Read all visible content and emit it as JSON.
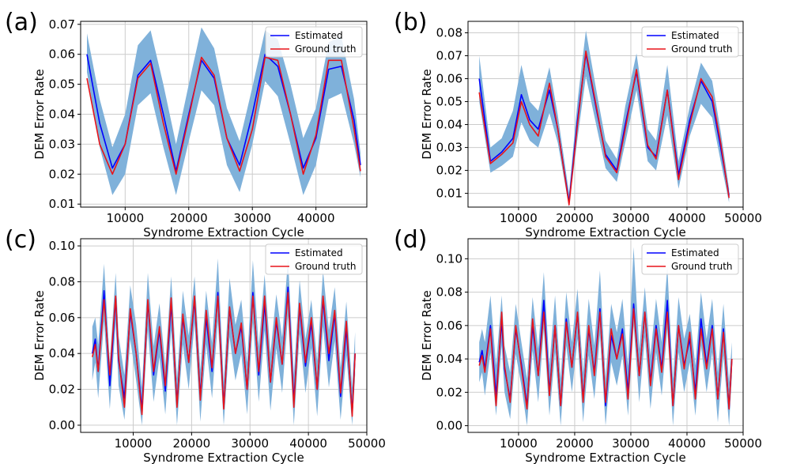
{
  "colors": {
    "estimated": "#0000ff",
    "ground_truth": "#e8141a",
    "band": "#7fb1da",
    "grid": "#cccccc"
  },
  "chart_data": [
    {
      "panel": "(a)",
      "type": "line",
      "xlabel": "Syndrome Extraction Cycle",
      "ylabel": "DEM Error Rate",
      "xlim": [
        3000,
        48000
      ],
      "ylim": [
        0.009,
        0.071
      ],
      "xticks": [
        10000,
        20000,
        30000,
        40000
      ],
      "xtick_labels": [
        "10000",
        "20000",
        "30000",
        "40000"
      ],
      "yticks": [
        0.01,
        0.02,
        0.03,
        0.04,
        0.05,
        0.06,
        0.07
      ],
      "ytick_labels": [
        "0.01",
        "0.02",
        "0.03",
        "0.04",
        "0.05",
        "0.06",
        "0.07"
      ],
      "legend": [
        "Estimated",
        "Ground truth"
      ],
      "legend_position": "top-right",
      "x": [
        4000,
        6000,
        8000,
        10000,
        12000,
        14000,
        16000,
        18000,
        20000,
        22000,
        24000,
        26000,
        28000,
        30000,
        32000,
        34000,
        36000,
        38000,
        40000,
        42000,
        44000,
        46000,
        47000
      ],
      "series": [
        {
          "name": "Estimated",
          "values": [
            0.06,
            0.037,
            0.022,
            0.03,
            0.053,
            0.058,
            0.04,
            0.021,
            0.04,
            0.058,
            0.052,
            0.032,
            0.023,
            0.04,
            0.06,
            0.056,
            0.04,
            0.022,
            0.032,
            0.055,
            0.056,
            0.038,
            0.023
          ]
        },
        {
          "name": "Ground truth",
          "values": [
            0.052,
            0.03,
            0.02,
            0.03,
            0.052,
            0.057,
            0.037,
            0.02,
            0.039,
            0.059,
            0.053,
            0.032,
            0.021,
            0.035,
            0.059,
            0.058,
            0.04,
            0.02,
            0.033,
            0.058,
            0.058,
            0.035,
            0.021
          ]
        }
      ],
      "band": {
        "upper": [
          0.067,
          0.045,
          0.029,
          0.04,
          0.063,
          0.068,
          0.05,
          0.03,
          0.05,
          0.069,
          0.062,
          0.042,
          0.031,
          0.049,
          0.068,
          0.065,
          0.05,
          0.032,
          0.042,
          0.064,
          0.066,
          0.045,
          0.027
        ],
        "lower": [
          0.054,
          0.029,
          0.013,
          0.02,
          0.043,
          0.047,
          0.029,
          0.013,
          0.031,
          0.048,
          0.043,
          0.023,
          0.014,
          0.03,
          0.051,
          0.046,
          0.03,
          0.013,
          0.023,
          0.045,
          0.047,
          0.03,
          0.019
        ]
      }
    },
    {
      "panel": "(b)",
      "type": "line",
      "xlabel": "Syndrome Extraction Cycle",
      "ylabel": "DEM Error Rate",
      "xlim": [
        1000,
        50000
      ],
      "ylim": [
        0.004,
        0.085
      ],
      "xticks": [
        10000,
        20000,
        30000,
        40000,
        50000
      ],
      "xtick_labels": [
        "10000",
        "20000",
        "30000",
        "40000",
        "50000"
      ],
      "yticks": [
        0.01,
        0.02,
        0.03,
        0.04,
        0.05,
        0.06,
        0.07,
        0.08
      ],
      "ytick_labels": [
        "0.01",
        "0.02",
        "0.03",
        "0.04",
        "0.05",
        "0.06",
        "0.07",
        "0.08"
      ],
      "legend": [
        "Estimated",
        "Ground truth"
      ],
      "legend_position": "top-right",
      "x": [
        3000,
        5000,
        7000,
        9000,
        10500,
        12000,
        13500,
        15500,
        17000,
        19000,
        20500,
        22000,
        24000,
        25500,
        27500,
        29000,
        31000,
        33000,
        34500,
        36500,
        38500,
        40500,
        42500,
        44500,
        46000,
        47500
      ],
      "series": [
        {
          "name": "Estimated",
          "values": [
            0.06,
            0.024,
            0.028,
            0.034,
            0.053,
            0.042,
            0.038,
            0.055,
            0.038,
            0.006,
            0.042,
            0.071,
            0.045,
            0.027,
            0.02,
            0.04,
            0.063,
            0.03,
            0.026,
            0.055,
            0.018,
            0.042,
            0.059,
            0.05,
            0.03,
            0.009
          ]
        },
        {
          "name": "Ground truth",
          "values": [
            0.054,
            0.023,
            0.027,
            0.032,
            0.05,
            0.04,
            0.035,
            0.058,
            0.038,
            0.005,
            0.04,
            0.072,
            0.046,
            0.026,
            0.019,
            0.038,
            0.064,
            0.031,
            0.025,
            0.055,
            0.016,
            0.04,
            0.06,
            0.052,
            0.032,
            0.008
          ]
        }
      ],
      "band": {
        "upper": [
          0.07,
          0.03,
          0.034,
          0.046,
          0.066,
          0.05,
          0.046,
          0.065,
          0.044,
          0.01,
          0.05,
          0.081,
          0.053,
          0.033,
          0.025,
          0.048,
          0.071,
          0.038,
          0.033,
          0.066,
          0.024,
          0.048,
          0.067,
          0.059,
          0.037,
          0.012
        ],
        "lower": [
          0.05,
          0.019,
          0.022,
          0.026,
          0.041,
          0.033,
          0.03,
          0.045,
          0.032,
          0.004,
          0.034,
          0.061,
          0.038,
          0.021,
          0.015,
          0.032,
          0.055,
          0.024,
          0.02,
          0.044,
          0.012,
          0.035,
          0.049,
          0.043,
          0.024,
          0.006
        ]
      }
    },
    {
      "panel": "(c)",
      "type": "line",
      "xlabel": "Syndrome Extraction Cycle",
      "ylabel": "DEM Error Rate",
      "xlim": [
        1000,
        50000
      ],
      "ylim": [
        -0.004,
        0.104
      ],
      "xticks": [
        10000,
        20000,
        30000,
        40000,
        50000
      ],
      "xtick_labels": [
        "10000",
        "20000",
        "30000",
        "40000",
        "50000"
      ],
      "yticks": [
        0.0,
        0.02,
        0.04,
        0.06,
        0.08,
        0.1
      ],
      "ytick_labels": [
        "0.00",
        "0.02",
        "0.04",
        "0.06",
        "0.08",
        "0.10"
      ],
      "legend": [
        "Estimated",
        "Ground truth"
      ],
      "legend_position": "top-right",
      "x": [
        3000,
        3500,
        4000,
        5000,
        6000,
        7000,
        7500,
        8500,
        9500,
        10500,
        11500,
        12500,
        13500,
        14500,
        15500,
        16500,
        17500,
        18500,
        19500,
        20500,
        21500,
        22500,
        23500,
        24500,
        25500,
        26500,
        27500,
        28500,
        29500,
        30500,
        31500,
        32500,
        33500,
        34500,
        35500,
        36500,
        37500,
        38500,
        39500,
        40500,
        41500,
        42500,
        43500,
        44500,
        45500,
        46500,
        47500,
        48000
      ],
      "series": [
        {
          "name": "Estimated",
          "values": [
            0.04,
            0.048,
            0.03,
            0.075,
            0.022,
            0.071,
            0.036,
            0.015,
            0.063,
            0.04,
            0.009,
            0.069,
            0.028,
            0.053,
            0.019,
            0.068,
            0.012,
            0.06,
            0.035,
            0.07,
            0.016,
            0.06,
            0.03,
            0.074,
            0.01,
            0.065,
            0.04,
            0.055,
            0.02,
            0.074,
            0.028,
            0.068,
            0.024,
            0.058,
            0.034,
            0.077,
            0.013,
            0.066,
            0.033,
            0.057,
            0.02,
            0.07,
            0.036,
            0.062,
            0.016,
            0.054,
            0.007,
            0.04
          ]
        },
        {
          "name": "Ground truth",
          "values": [
            0.038,
            0.045,
            0.03,
            0.07,
            0.028,
            0.072,
            0.038,
            0.01,
            0.065,
            0.04,
            0.006,
            0.07,
            0.03,
            0.055,
            0.022,
            0.071,
            0.01,
            0.062,
            0.035,
            0.072,
            0.014,
            0.064,
            0.032,
            0.072,
            0.009,
            0.066,
            0.04,
            0.057,
            0.02,
            0.072,
            0.03,
            0.072,
            0.024,
            0.06,
            0.034,
            0.074,
            0.01,
            0.068,
            0.035,
            0.06,
            0.02,
            0.072,
            0.04,
            0.064,
            0.018,
            0.058,
            0.005,
            0.04
          ]
        }
      ],
      "band": {
        "upper": [
          0.055,
          0.06,
          0.045,
          0.09,
          0.035,
          0.085,
          0.05,
          0.028,
          0.078,
          0.056,
          0.021,
          0.085,
          0.044,
          0.068,
          0.033,
          0.083,
          0.026,
          0.075,
          0.05,
          0.083,
          0.031,
          0.075,
          0.046,
          0.093,
          0.024,
          0.082,
          0.056,
          0.07,
          0.035,
          0.092,
          0.044,
          0.084,
          0.04,
          0.073,
          0.049,
          0.093,
          0.028,
          0.081,
          0.048,
          0.07,
          0.036,
          0.086,
          0.053,
          0.077,
          0.032,
          0.069,
          0.021,
          0.052
        ],
        "lower": [
          0.025,
          0.035,
          0.015,
          0.058,
          0.009,
          0.057,
          0.022,
          0.003,
          0.048,
          0.025,
          0.0,
          0.053,
          0.013,
          0.038,
          0.006,
          0.053,
          0.0,
          0.045,
          0.02,
          0.057,
          0.002,
          0.045,
          0.015,
          0.058,
          0.0,
          0.049,
          0.025,
          0.04,
          0.006,
          0.057,
          0.013,
          0.053,
          0.008,
          0.043,
          0.018,
          0.061,
          0.0,
          0.051,
          0.018,
          0.043,
          0.005,
          0.055,
          0.021,
          0.047,
          0.003,
          0.039,
          0.0,
          0.028
        ]
      }
    },
    {
      "panel": "(d)",
      "type": "line",
      "xlabel": "Syndrome Extraction Cycle",
      "ylabel": "DEM Error Rate",
      "xlim": [
        1000,
        50000
      ],
      "ylim": [
        -0.004,
        0.112
      ],
      "xticks": [
        10000,
        20000,
        30000,
        40000,
        50000
      ],
      "xtick_labels": [
        "10000",
        "20000",
        "30000",
        "40000",
        "50000"
      ],
      "yticks": [
        0.0,
        0.02,
        0.04,
        0.06,
        0.08,
        0.1
      ],
      "ytick_labels": [
        "0.00",
        "0.02",
        "0.04",
        "0.06",
        "0.08",
        "0.10"
      ],
      "legend": [
        "Estimated",
        "Ground truth"
      ],
      "legend_position": "top-right",
      "x": [
        3000,
        3500,
        4000,
        5000,
        6000,
        7000,
        7500,
        8500,
        9500,
        10500,
        11500,
        12500,
        13500,
        14500,
        15500,
        16500,
        17500,
        18500,
        19500,
        20500,
        21500,
        22500,
        23500,
        24500,
        25500,
        26500,
        27500,
        28500,
        29500,
        30500,
        31500,
        32500,
        33500,
        34500,
        35500,
        36500,
        37500,
        38500,
        39500,
        40500,
        41500,
        42500,
        43500,
        44500,
        45500,
        46500,
        47500,
        48000
      ],
      "series": [
        {
          "name": "Estimated",
          "values": [
            0.038,
            0.045,
            0.034,
            0.06,
            0.018,
            0.063,
            0.034,
            0.016,
            0.058,
            0.037,
            0.012,
            0.06,
            0.03,
            0.075,
            0.02,
            0.06,
            0.012,
            0.064,
            0.035,
            0.067,
            0.016,
            0.058,
            0.032,
            0.07,
            0.012,
            0.054,
            0.04,
            0.058,
            0.02,
            0.073,
            0.03,
            0.068,
            0.026,
            0.06,
            0.034,
            0.075,
            0.012,
            0.06,
            0.036,
            0.052,
            0.02,
            0.064,
            0.036,
            0.06,
            0.016,
            0.058,
            0.01,
            0.04
          ]
        },
        {
          "name": "Ground truth",
          "values": [
            0.036,
            0.042,
            0.032,
            0.058,
            0.012,
            0.068,
            0.036,
            0.014,
            0.06,
            0.035,
            0.01,
            0.064,
            0.03,
            0.068,
            0.018,
            0.06,
            0.012,
            0.062,
            0.035,
            0.068,
            0.014,
            0.06,
            0.03,
            0.068,
            0.014,
            0.058,
            0.04,
            0.055,
            0.016,
            0.07,
            0.03,
            0.068,
            0.024,
            0.058,
            0.032,
            0.068,
            0.012,
            0.06,
            0.034,
            0.056,
            0.016,
            0.058,
            0.034,
            0.058,
            0.016,
            0.056,
            0.01,
            0.04
          ]
        }
      ],
      "band": {
        "upper": [
          0.05,
          0.058,
          0.05,
          0.078,
          0.036,
          0.078,
          0.048,
          0.032,
          0.073,
          0.05,
          0.028,
          0.077,
          0.046,
          0.092,
          0.036,
          0.078,
          0.028,
          0.08,
          0.05,
          0.082,
          0.032,
          0.076,
          0.048,
          0.093,
          0.028,
          0.073,
          0.056,
          0.076,
          0.036,
          0.107,
          0.046,
          0.083,
          0.042,
          0.076,
          0.05,
          0.095,
          0.028,
          0.077,
          0.052,
          0.067,
          0.036,
          0.08,
          0.052,
          0.076,
          0.032,
          0.073,
          0.026,
          0.05
        ],
        "lower": [
          0.026,
          0.032,
          0.018,
          0.044,
          0.006,
          0.048,
          0.02,
          0.004,
          0.043,
          0.024,
          0.0,
          0.045,
          0.014,
          0.058,
          0.006,
          0.044,
          0.0,
          0.048,
          0.02,
          0.052,
          0.002,
          0.042,
          0.016,
          0.054,
          0.0,
          0.038,
          0.024,
          0.042,
          0.006,
          0.06,
          0.014,
          0.053,
          0.01,
          0.044,
          0.018,
          0.058,
          0.0,
          0.044,
          0.02,
          0.038,
          0.006,
          0.048,
          0.02,
          0.044,
          0.002,
          0.042,
          0.0,
          0.03
        ]
      }
    }
  ]
}
